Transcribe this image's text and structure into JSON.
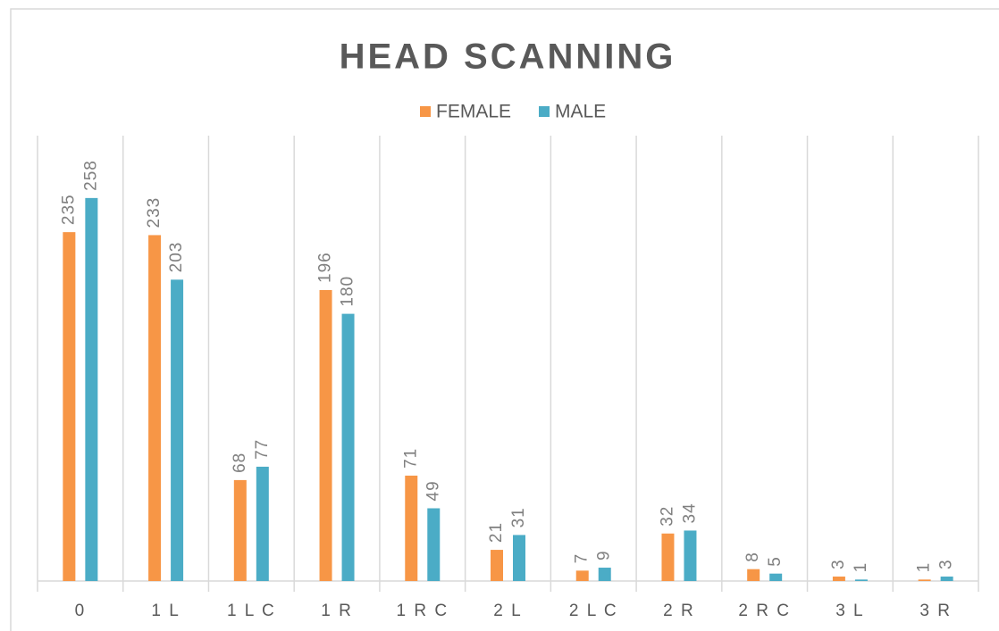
{
  "chart_data": {
    "type": "bar",
    "title": "HEAD SCANNING",
    "categories": [
      "0",
      "1 L",
      "1 L C",
      "1 R",
      "1 R C",
      "2 L",
      "2 L C",
      "2 R",
      "2 R C",
      "3 L",
      "3 R"
    ],
    "series": [
      {
        "name": "FEMALE",
        "color": "#f79646",
        "values": [
          235,
          233,
          68,
          196,
          71,
          21,
          7,
          32,
          8,
          3,
          1
        ]
      },
      {
        "name": "MALE",
        "color": "#4bacc6",
        "values": [
          258,
          203,
          77,
          180,
          49,
          31,
          9,
          34,
          5,
          1,
          3
        ]
      }
    ],
    "ylim": [
      0,
      300
    ]
  }
}
